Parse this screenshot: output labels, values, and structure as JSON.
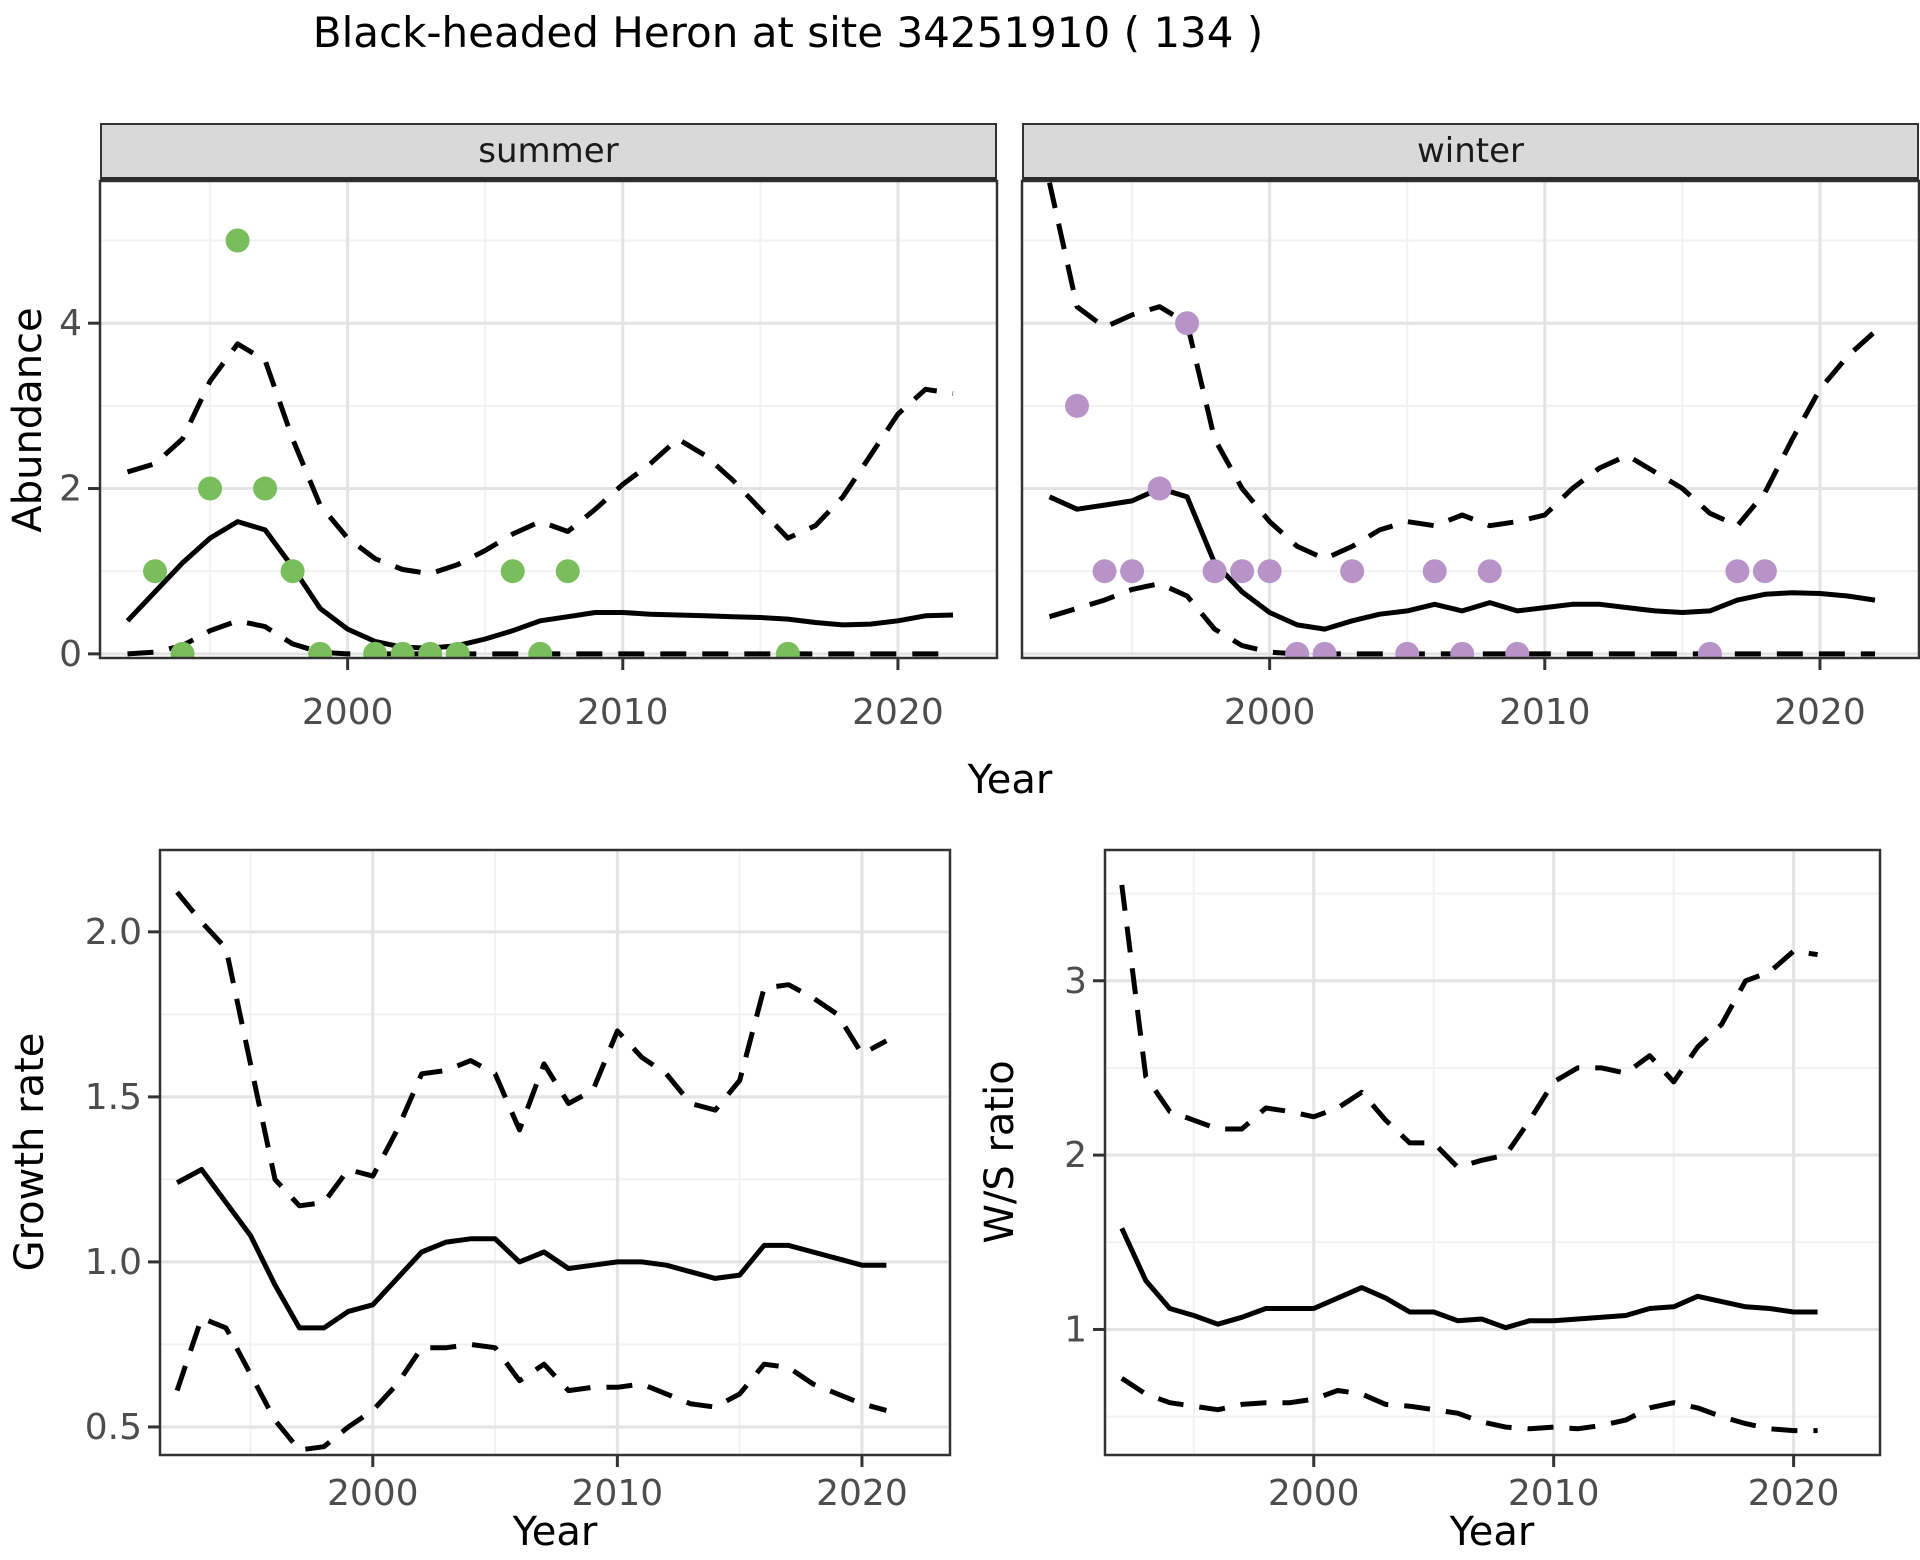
{
  "title": "Black-headed Heron at site 34251910 ( 134 )",
  "top_row": {
    "facets": [
      {
        "label": "summer"
      },
      {
        "label": "winter"
      }
    ],
    "y_axis_title": "Abundance",
    "x_axis_title": "Year"
  },
  "bottom_row": {
    "left_y_axis_title": "Growth rate",
    "right_y_axis_title": "W/S ratio",
    "x_axis_title": "Year"
  },
  "colors": {
    "summer_point": "#7ABD5C",
    "winter_point": "#B893C8",
    "line": "#000000",
    "grid_major": "#E3E3E3",
    "grid_minor": "#F1F1F1",
    "panel_border": "#333333",
    "tick_text": "#4D4D4D",
    "strip_bg": "#D9D9D9"
  },
  "chart_data": [
    {
      "id": "abundance-summer",
      "type": "line+scatter",
      "facet": "summer",
      "ylabel": "Abundance",
      "xlabel": "Year",
      "x_range": [
        1991.0,
        2023.6
      ],
      "y_range": [
        -0.05,
        5.72
      ],
      "x_ticks": [
        2000,
        2010,
        2020
      ],
      "x_tick_labels": [
        "2000",
        "2010",
        "2020"
      ],
      "x_minor": [
        1995,
        2005,
        2015
      ],
      "y_ticks": [
        0,
        2,
        4
      ],
      "y_tick_labels": [
        "0",
        "2",
        "4"
      ],
      "y_minor": [
        1,
        3,
        5
      ],
      "years": [
        1992,
        1993,
        1994,
        1995,
        1996,
        1997,
        1998,
        1999,
        2000,
        2001,
        2002,
        2003,
        2004,
        2005,
        2006,
        2007,
        2008,
        2009,
        2010,
        2011,
        2012,
        2013,
        2014,
        2015,
        2016,
        2017,
        2018,
        2019,
        2020,
        2021,
        2022
      ],
      "median": [
        0.4,
        0.75,
        1.1,
        1.4,
        1.6,
        1.5,
        1.05,
        0.55,
        0.3,
        0.15,
        0.08,
        0.07,
        0.1,
        0.18,
        0.28,
        0.4,
        0.45,
        0.5,
        0.5,
        0.48,
        0.47,
        0.46,
        0.45,
        0.44,
        0.42,
        0.38,
        0.35,
        0.36,
        0.4,
        0.46,
        0.47
      ],
      "upper_ci": [
        2.2,
        2.3,
        2.6,
        3.3,
        3.75,
        3.55,
        2.6,
        1.8,
        1.4,
        1.15,
        1.02,
        0.97,
        1.08,
        1.25,
        1.45,
        1.6,
        1.48,
        1.75,
        2.05,
        2.3,
        2.6,
        2.4,
        2.1,
        1.75,
        1.4,
        1.55,
        1.9,
        2.4,
        2.9,
        3.2,
        3.15
      ],
      "lower_ci": [
        0.0,
        0.02,
        0.1,
        0.28,
        0.4,
        0.33,
        0.12,
        0.02,
        0.0,
        0.0,
        0.0,
        0.0,
        0.0,
        0.0,
        0.0,
        0.0,
        0.0,
        0.0,
        0.0,
        0.0,
        0.0,
        0.0,
        0.0,
        0.0,
        0.0,
        0.0,
        0.0,
        0.0,
        0.0,
        0.0,
        0.0
      ],
      "points": [
        [
          1993,
          1
        ],
        [
          1994,
          0
        ],
        [
          1995,
          2
        ],
        [
          1996,
          5
        ],
        [
          1997,
          2
        ],
        [
          1998,
          1
        ],
        [
          1999,
          0
        ],
        [
          2001,
          0
        ],
        [
          2002,
          0
        ],
        [
          2003,
          0
        ],
        [
          2004,
          0
        ],
        [
          2006,
          1
        ],
        [
          2007,
          0
        ],
        [
          2008,
          1
        ],
        [
          2016,
          0
        ]
      ],
      "point_color": "#7ABD5C"
    },
    {
      "id": "abundance-winter",
      "type": "line+scatter",
      "facet": "winter",
      "ylabel": "Abundance",
      "xlabel": "Year",
      "x_range": [
        1991.0,
        2023.6
      ],
      "y_range": [
        -0.05,
        5.72
      ],
      "x_ticks": [
        2000,
        2010,
        2020
      ],
      "x_tick_labels": [
        "2000",
        "2010",
        "2020"
      ],
      "x_minor": [
        1995,
        2005,
        2015
      ],
      "y_ticks": [
        0,
        2,
        4
      ],
      "y_tick_labels": [
        "0",
        "2",
        "4"
      ],
      "y_minor": [
        1,
        3,
        5
      ],
      "years": [
        1992,
        1993,
        1994,
        1995,
        1996,
        1997,
        1998,
        1999,
        2000,
        2001,
        2002,
        2003,
        2004,
        2005,
        2006,
        2007,
        2008,
        2009,
        2010,
        2011,
        2012,
        2013,
        2014,
        2015,
        2016,
        2017,
        2018,
        2019,
        2020,
        2021,
        2022
      ],
      "median": [
        1.9,
        1.75,
        1.8,
        1.85,
        2.0,
        1.9,
        1.1,
        0.75,
        0.5,
        0.35,
        0.3,
        0.4,
        0.48,
        0.52,
        0.6,
        0.52,
        0.62,
        0.52,
        0.56,
        0.6,
        0.6,
        0.56,
        0.52,
        0.5,
        0.52,
        0.65,
        0.72,
        0.74,
        0.73,
        0.7,
        0.65
      ],
      "upper_ci": [
        5.7,
        4.2,
        3.95,
        4.1,
        4.2,
        4.0,
        2.6,
        2.0,
        1.6,
        1.3,
        1.15,
        1.3,
        1.5,
        1.6,
        1.55,
        1.68,
        1.55,
        1.6,
        1.68,
        2.0,
        2.25,
        2.4,
        2.2,
        2.0,
        1.7,
        1.55,
        1.95,
        2.6,
        3.2,
        3.6,
        3.9
      ],
      "lower_ci": [
        0.45,
        0.55,
        0.65,
        0.78,
        0.85,
        0.7,
        0.3,
        0.1,
        0.02,
        0.0,
        0.0,
        0.0,
        0.0,
        0.0,
        0.0,
        0.0,
        0.0,
        0.0,
        0.0,
        0.0,
        0.0,
        0.0,
        0.0,
        0.0,
        0.0,
        0.0,
        0.0,
        0.0,
        0.0,
        0.0,
        0.0
      ],
      "points": [
        [
          1993,
          3
        ],
        [
          1994,
          1
        ],
        [
          1995,
          1
        ],
        [
          1996,
          2
        ],
        [
          1997,
          4
        ],
        [
          1998,
          1
        ],
        [
          1999,
          1
        ],
        [
          2000,
          1
        ],
        [
          2001,
          0
        ],
        [
          2002,
          0
        ],
        [
          2003,
          1
        ],
        [
          2005,
          0
        ],
        [
          2006,
          1
        ],
        [
          2007,
          0
        ],
        [
          2008,
          1
        ],
        [
          2009,
          0
        ],
        [
          2016,
          0
        ],
        [
          2017,
          1
        ],
        [
          2018,
          1
        ]
      ],
      "point_color": "#B893C8"
    },
    {
      "id": "growth-rate",
      "type": "line",
      "ylabel": "Growth rate",
      "xlabel": "Year",
      "x_range": [
        1991.3,
        2023.6
      ],
      "y_range": [
        0.415,
        2.248
      ],
      "x_ticks": [
        2000,
        2010,
        2020
      ],
      "x_tick_labels": [
        "2000",
        "2010",
        "2020"
      ],
      "x_minor": [
        1995,
        2005,
        2015
      ],
      "y_ticks": [
        0.5,
        1.0,
        1.5,
        2.0
      ],
      "y_tick_labels": [
        "0.5",
        "1.0",
        "1.5",
        "2.0"
      ],
      "y_minor": [
        0.75,
        1.25,
        1.75,
        2.25
      ],
      "years": [
        1992,
        1993,
        1994,
        1995,
        1996,
        1997,
        1998,
        1999,
        2000,
        2001,
        2002,
        2003,
        2004,
        2005,
        2006,
        2007,
        2008,
        2009,
        2010,
        2011,
        2012,
        2013,
        2014,
        2015,
        2016,
        2017,
        2018,
        2019,
        2020,
        2021
      ],
      "median": [
        1.24,
        1.28,
        1.18,
        1.08,
        0.93,
        0.8,
        0.8,
        0.85,
        0.87,
        0.95,
        1.03,
        1.06,
        1.07,
        1.07,
        1.0,
        1.03,
        0.98,
        0.99,
        1.0,
        1.0,
        0.99,
        0.97,
        0.95,
        0.96,
        1.05,
        1.05,
        1.03,
        1.01,
        0.99,
        0.99
      ],
      "upper_ci": [
        2.12,
        2.03,
        1.95,
        1.6,
        1.25,
        1.17,
        1.18,
        1.28,
        1.26,
        1.4,
        1.57,
        1.58,
        1.61,
        1.57,
        1.4,
        1.6,
        1.48,
        1.52,
        1.7,
        1.62,
        1.57,
        1.48,
        1.46,
        1.55,
        1.83,
        1.84,
        1.8,
        1.75,
        1.63,
        1.67
      ],
      "lower_ci": [
        0.61,
        0.83,
        0.8,
        0.66,
        0.52,
        0.43,
        0.44,
        0.5,
        0.55,
        0.63,
        0.74,
        0.74,
        0.75,
        0.74,
        0.64,
        0.69,
        0.61,
        0.62,
        0.62,
        0.63,
        0.6,
        0.57,
        0.56,
        0.6,
        0.69,
        0.68,
        0.63,
        0.6,
        0.57,
        0.55
      ],
      "points": [],
      "point_color": "#000000"
    },
    {
      "id": "ws-ratio",
      "type": "line",
      "ylabel": "W/S ratio",
      "xlabel": "Year",
      "x_range": [
        1991.3,
        2023.6
      ],
      "y_range": [
        0.28,
        3.75
      ],
      "x_ticks": [
        2000,
        2010,
        2020
      ],
      "x_tick_labels": [
        "2000",
        "2010",
        "2020"
      ],
      "x_minor": [
        1995,
        2005,
        2015
      ],
      "y_ticks": [
        1,
        2,
        3
      ],
      "y_tick_labels": [
        "1",
        "2",
        "3"
      ],
      "y_minor": [
        0.5,
        1.5,
        2.5,
        3.5
      ],
      "years": [
        1992,
        1993,
        1994,
        1995,
        1996,
        1997,
        1998,
        1999,
        2000,
        2001,
        2002,
        2003,
        2004,
        2005,
        2006,
        2007,
        2008,
        2009,
        2010,
        2011,
        2012,
        2013,
        2014,
        2015,
        2016,
        2017,
        2018,
        2019,
        2020,
        2021
      ],
      "median": [
        1.58,
        1.28,
        1.12,
        1.08,
        1.03,
        1.07,
        1.12,
        1.12,
        1.12,
        1.18,
        1.24,
        1.18,
        1.1,
        1.1,
        1.05,
        1.06,
        1.01,
        1.05,
        1.05,
        1.06,
        1.07,
        1.08,
        1.12,
        1.13,
        1.19,
        1.16,
        1.13,
        1.12,
        1.1,
        1.1
      ],
      "upper_ci": [
        3.55,
        2.45,
        2.25,
        2.2,
        2.15,
        2.15,
        2.27,
        2.25,
        2.22,
        2.27,
        2.36,
        2.2,
        2.07,
        2.07,
        1.93,
        1.97,
        2.0,
        2.2,
        2.42,
        2.5,
        2.5,
        2.47,
        2.57,
        2.42,
        2.62,
        2.75,
        3.0,
        3.05,
        3.17,
        3.15
      ],
      "lower_ci": [
        0.72,
        0.63,
        0.58,
        0.56,
        0.54,
        0.57,
        0.58,
        0.58,
        0.6,
        0.65,
        0.63,
        0.57,
        0.56,
        0.54,
        0.52,
        0.47,
        0.44,
        0.43,
        0.44,
        0.43,
        0.45,
        0.48,
        0.55,
        0.58,
        0.55,
        0.5,
        0.46,
        0.43,
        0.42,
        0.42
      ],
      "points": [],
      "point_color": "#000000"
    }
  ]
}
